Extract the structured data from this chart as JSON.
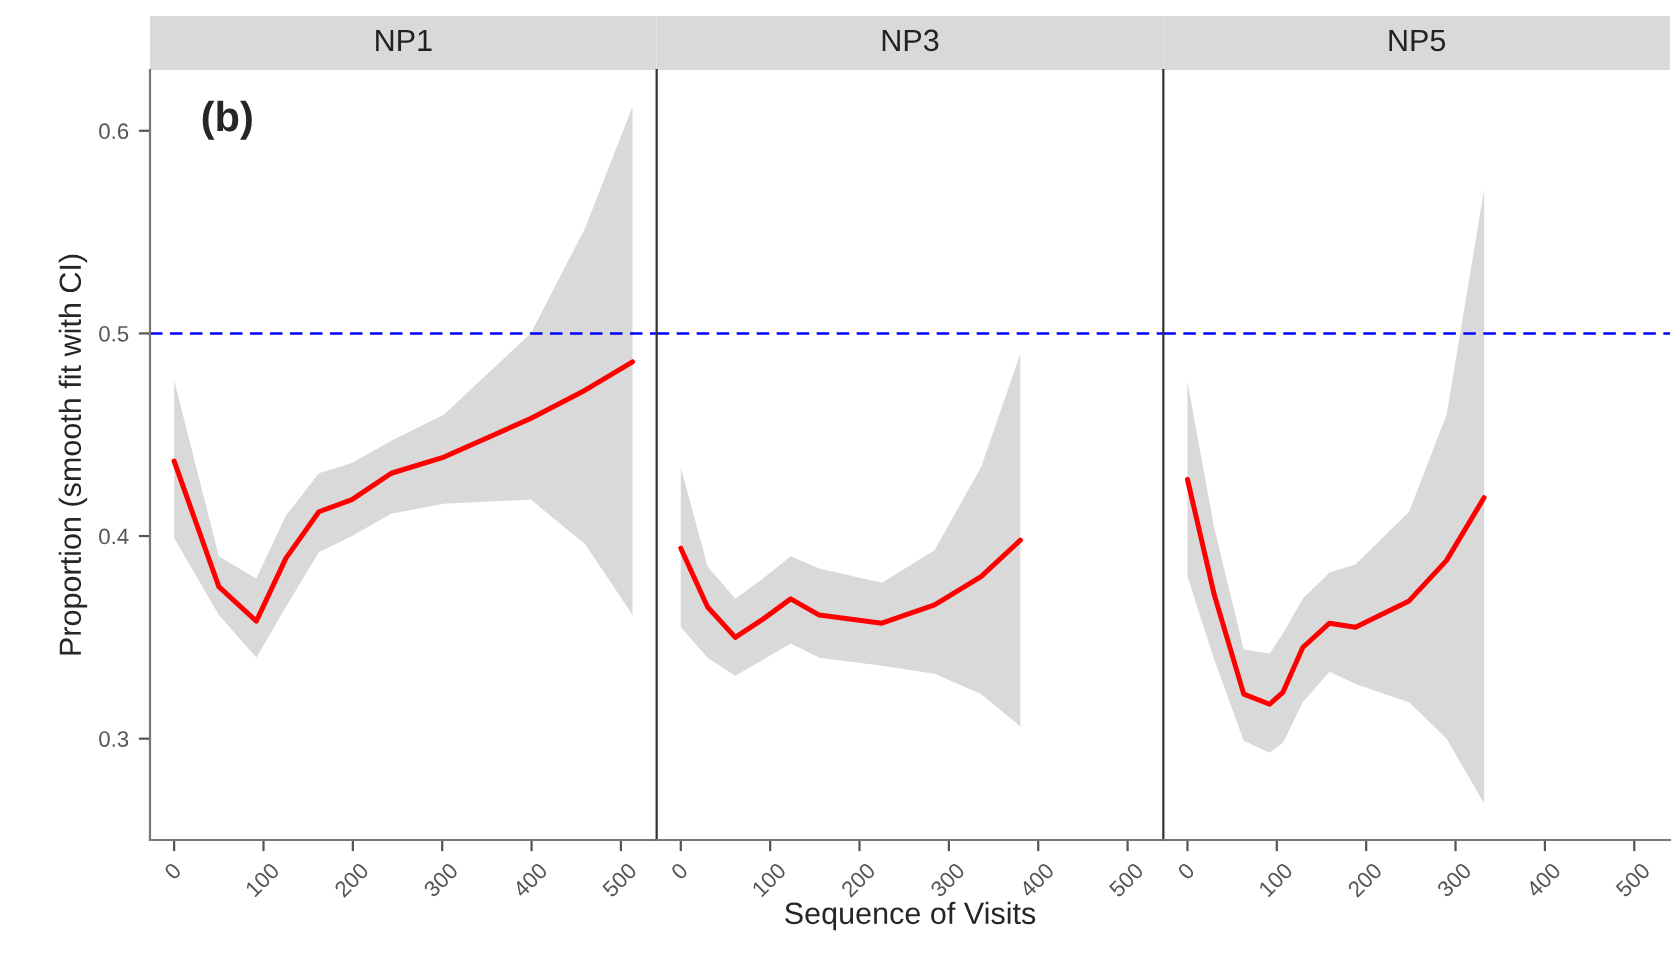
{
  "chart_data": [
    {
      "type": "line",
      "title": "NP1",
      "ylabel": "Proportion (smooth fit with CI)",
      "annotations": [
        "(b)"
      ],
      "xlim": [
        -27,
        540
      ],
      "xticks": [
        0,
        100,
        200,
        300,
        400,
        500
      ],
      "ylim": [
        0.25,
        0.63
      ],
      "yticks": [
        0.3,
        0.4,
        0.5,
        0.6
      ],
      "grid": false,
      "legend": false,
      "ref_lines": [
        {
          "axis": "y",
          "value": 0.5,
          "color": "#0000ff",
          "line_style": "dashed"
        }
      ],
      "series": [
        {
          "color": "#ff0000",
          "x": [
            0,
            50,
            92,
            125,
            162,
            199,
            243,
            302,
            399,
            460,
            513
          ],
          "values": [
            0.437,
            0.375,
            0.358,
            0.389,
            0.412,
            0.418,
            0.431,
            0.439,
            0.458,
            0.472,
            0.486
          ],
          "lower": [
            0.399,
            0.361,
            0.34,
            0.365,
            0.392,
            0.4,
            0.411,
            0.416,
            0.418,
            0.396,
            0.361
          ],
          "upper": [
            0.477,
            0.39,
            0.379,
            0.41,
            0.431,
            0.436,
            0.447,
            0.46,
            0.5,
            0.552,
            0.612
          ]
        }
      ]
    },
    {
      "type": "line",
      "title": "NP3",
      "xlabel": "Sequence of Visits",
      "xlim": [
        -27,
        540
      ],
      "xticks": [
        0,
        100,
        200,
        300,
        400,
        500
      ],
      "ylim": [
        0.25,
        0.63
      ],
      "tick_labels": "x",
      "grid": false,
      "legend": false,
      "ref_lines": [
        {
          "axis": "y",
          "value": 0.5,
          "color": "#0000ff",
          "line_style": "dashed"
        }
      ],
      "series": [
        {
          "color": "#ff0000",
          "x": [
            0,
            30,
            61,
            92,
            123,
            155,
            225,
            284,
            336,
            380
          ],
          "values": [
            0.394,
            0.365,
            0.35,
            0.359,
            0.369,
            0.361,
            0.357,
            0.366,
            0.38,
            0.398
          ],
          "lower": [
            0.355,
            0.34,
            0.331,
            0.339,
            0.347,
            0.34,
            0.336,
            0.332,
            0.322,
            0.306
          ],
          "upper": [
            0.434,
            0.385,
            0.369,
            0.379,
            0.39,
            0.384,
            0.377,
            0.393,
            0.434,
            0.49
          ]
        }
      ]
    },
    {
      "type": "line",
      "title": "NP5",
      "xlim": [
        -27,
        540
      ],
      "xticks": [
        0,
        100,
        200,
        300,
        400,
        500
      ],
      "ylim": [
        0.25,
        0.63
      ],
      "tick_labels": "x",
      "grid": false,
      "legend": false,
      "ref_lines": [
        {
          "axis": "y",
          "value": 0.5,
          "color": "#0000ff",
          "line_style": "dashed"
        }
      ],
      "series": [
        {
          "color": "#ff0000",
          "x": [
            0,
            30,
            63,
            92,
            107,
            129,
            159,
            188,
            248,
            290,
            332
          ],
          "values": [
            0.428,
            0.371,
            0.322,
            0.317,
            0.323,
            0.345,
            0.357,
            0.355,
            0.368,
            0.388,
            0.419
          ],
          "lower": [
            0.38,
            0.339,
            0.299,
            0.293,
            0.298,
            0.318,
            0.333,
            0.327,
            0.318,
            0.3,
            0.268
          ],
          "upper": [
            0.476,
            0.404,
            0.344,
            0.342,
            0.352,
            0.369,
            0.382,
            0.386,
            0.412,
            0.46,
            0.571
          ]
        }
      ]
    }
  ]
}
